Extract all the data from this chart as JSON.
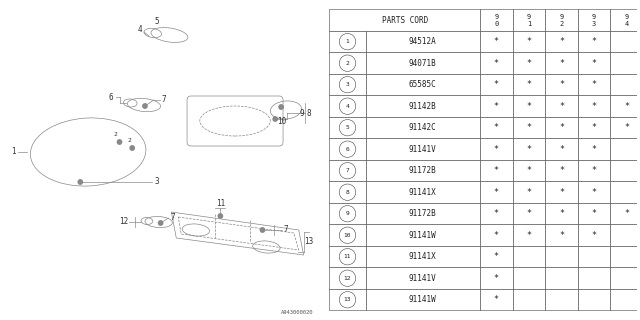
{
  "watermark": "A943000020",
  "bg_color": "#ffffff",
  "ec": "#888888",
  "lw": 0.5,
  "table": {
    "rows": [
      {
        "num": "1",
        "part": "94512A",
        "cols": [
          true,
          true,
          true,
          true,
          false
        ]
      },
      {
        "num": "2",
        "part": "94071B",
        "cols": [
          true,
          true,
          true,
          true,
          false
        ]
      },
      {
        "num": "3",
        "part": "65585C",
        "cols": [
          true,
          true,
          true,
          true,
          false
        ]
      },
      {
        "num": "4",
        "part": "91142B",
        "cols": [
          true,
          true,
          true,
          true,
          true
        ]
      },
      {
        "num": "5",
        "part": "91142C",
        "cols": [
          true,
          true,
          true,
          true,
          true
        ]
      },
      {
        "num": "6",
        "part": "91141V",
        "cols": [
          true,
          true,
          true,
          true,
          false
        ]
      },
      {
        "num": "7",
        "part": "91172B",
        "cols": [
          true,
          true,
          true,
          true,
          false
        ]
      },
      {
        "num": "8",
        "part": "91141X",
        "cols": [
          true,
          true,
          true,
          true,
          false
        ]
      },
      {
        "num": "9",
        "part": "91172B",
        "cols": [
          true,
          true,
          true,
          true,
          true
        ]
      },
      {
        "num": "10",
        "part": "91141W",
        "cols": [
          true,
          true,
          true,
          true,
          false
        ]
      },
      {
        "num": "11",
        "part": "91141X",
        "cols": [
          true,
          false,
          false,
          false,
          false
        ]
      },
      {
        "num": "12",
        "part": "91141V",
        "cols": [
          true,
          false,
          false,
          false,
          false
        ]
      },
      {
        "num": "13",
        "part": "91141W",
        "cols": [
          true,
          false,
          false,
          false,
          false
        ]
      }
    ]
  }
}
